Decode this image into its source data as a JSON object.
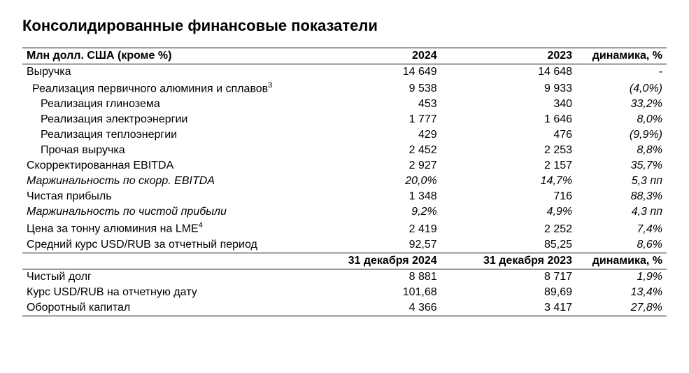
{
  "title": "Консолидированные финансовые показатели",
  "table": {
    "header1": {
      "label": "Млн долл. США (кроме %)",
      "col1": "2024",
      "col2": "2023",
      "col3": "динамика, %"
    },
    "rows1": [
      {
        "label": "Выручка",
        "indent": 0,
        "v1": "14 649",
        "v2": "14 648",
        "dyn": "-"
      },
      {
        "label": "Реализация первичного алюминия и сплавов",
        "sup": "3",
        "indent": 1,
        "v1": "9 538",
        "v2": "9 933",
        "dyn": "(4,0%)"
      },
      {
        "label": "Реализация глинозема",
        "indent": 2,
        "v1": "453",
        "v2": "340",
        "dyn": "33,2%"
      },
      {
        "label": "Реализация электроэнергии",
        "indent": 2,
        "v1": "1 777",
        "v2": "1 646",
        "dyn": "8,0%"
      },
      {
        "label": "Реализация теплоэнергии",
        "indent": 2,
        "v1": "429",
        "v2": "476",
        "dyn": "(9,9%)"
      },
      {
        "label": "Прочая выручка",
        "indent": 2,
        "v1": "2 452",
        "v2": "2 253",
        "dyn": "8,8%"
      },
      {
        "label": "Скорректированная EBITDA",
        "indent": 0,
        "v1": "2 927",
        "v2": "2 157",
        "dyn": "35,7%"
      },
      {
        "label": "Маржинальность по скорр. EBITDA",
        "indent": 0,
        "italic": true,
        "v1": "20,0%",
        "v2": "14,7%",
        "dyn": "5,3 пп"
      },
      {
        "label": "Чистая прибыль",
        "indent": 0,
        "v1": "1 348",
        "v2": "716",
        "dyn": "88,3%"
      },
      {
        "label": "Маржинальность по чистой прибыли",
        "indent": 0,
        "italic": true,
        "v1": "9,2%",
        "v2": "4,9%",
        "dyn": "4,3 пп"
      },
      {
        "label": "Цена за тонну алюминия на LME",
        "sup": "4",
        "indent": 0,
        "v1": "2 419",
        "v2": "2 252",
        "dyn": "7,4%"
      },
      {
        "label": "Средний курс USD/RUB за отчетный период",
        "indent": 0,
        "v1": "92,57",
        "v2": "85,25",
        "dyn": "8,6%"
      }
    ],
    "header2": {
      "label": "",
      "col1": "31 декабря 2024",
      "col2": "31 декабря 2023",
      "col3": "динамика, %"
    },
    "rows2": [
      {
        "label": "Чистый долг",
        "indent": 0,
        "v1": "8 881",
        "v2": "8 717",
        "dyn": "1,9%"
      },
      {
        "label": "Курс USD/RUB на отчетную дату",
        "indent": 0,
        "v1": "101,68",
        "v2": "89,69",
        "dyn": "13,4%"
      },
      {
        "label": "Оборотный капитал",
        "indent": 0,
        "v1": "4 366",
        "v2": "3 417",
        "dyn": "27,8%"
      }
    ]
  }
}
